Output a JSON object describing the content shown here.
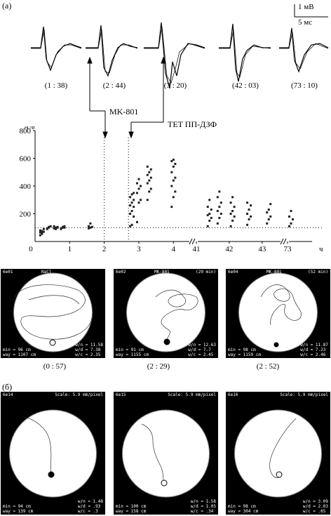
{
  "panel_a": "(a)",
  "panel_b": "(б)",
  "scale_bar": {
    "voltage": "1 мВ",
    "time": "5 мс"
  },
  "wave_labels": [
    "(1 : 38)",
    "(2 : 44)",
    "(3 : 20)",
    "(42 : 03)",
    "(73 : 10)"
  ],
  "annotations": {
    "mk801": "MK-801",
    "tet": "TET ПП-ДЗФ"
  },
  "chart_data": {
    "type": "scatter",
    "ylabel": "A%",
    "xlabel": "ч",
    "y_ticks": [
      "800",
      "600",
      "400",
      "200"
    ],
    "x_ticks": [
      "0",
      "1",
      "2",
      "3",
      "4",
      "41",
      "42",
      "43",
      "73"
    ],
    "ylim": [
      0,
      800
    ],
    "baseline": 100,
    "series": [
      {
        "x": 0.2,
        "values": [
          45,
          60,
          70,
          80,
          55,
          90,
          65,
          75
        ]
      },
      {
        "x": 0.4,
        "values": [
          90,
          100,
          110,
          95,
          105
        ]
      },
      {
        "x": 0.6,
        "values": [
          95,
          100,
          105,
          110,
          90,
          100
        ]
      },
      {
        "x": 0.8,
        "values": [
          90,
          100,
          110,
          95,
          105,
          100
        ]
      },
      {
        "x": 1.6,
        "values": [
          95,
          100,
          105,
          110,
          130
        ]
      },
      {
        "x": 2.8,
        "values": [
          110,
          120,
          180,
          200,
          220,
          250,
          260,
          280,
          300,
          320,
          340,
          350
        ]
      },
      {
        "x": 3.0,
        "values": [
          140,
          280,
          300,
          350,
          380,
          400,
          420,
          450
        ]
      },
      {
        "x": 3.3,
        "values": [
          300,
          360,
          380,
          420,
          440,
          460,
          480,
          500,
          520,
          540
        ]
      },
      {
        "x": 4.0,
        "values": [
          250,
          320,
          360,
          400,
          440,
          460,
          500,
          540,
          560,
          580,
          590
        ]
      },
      {
        "x": 41.4,
        "values": [
          110,
          150,
          170,
          190,
          200,
          230,
          250,
          300
        ]
      },
      {
        "x": 41.7,
        "values": [
          130,
          170,
          200,
          220,
          250,
          280,
          320,
          360
        ]
      },
      {
        "x": 42.1,
        "values": [
          110,
          150,
          180,
          200,
          220,
          250,
          280,
          320
        ]
      },
      {
        "x": 42.6,
        "values": [
          120,
          160,
          180,
          200,
          230,
          260,
          280
        ]
      },
      {
        "x": 43.2,
        "values": [
          130,
          160,
          180,
          210,
          230,
          270
        ]
      },
      {
        "x": 73.1,
        "values": [
          110,
          130,
          160,
          180,
          220
        ]
      }
    ]
  },
  "tracks_row1": [
    {
      "header_left": "6e01",
      "header_mid": "NaCl",
      "header_right": "",
      "stats_left": [
        "min = 96 cm",
        "way = 1107 cm"
      ],
      "stats_right": [
        "w/n = 11.58",
        "w/d = 7.38",
        "w/c = 2.35"
      ]
    },
    {
      "header_left": "6e02",
      "header_mid": "MK-801",
      "header_right": "(29 min)",
      "stats_left": [
        "min = 91 cm",
        "way = 1155 cm"
      ],
      "stats_right": [
        "w/n = 12.63",
        "w/d = 7.7",
        "w/c = 2.45"
      ]
    },
    {
      "header_left": "6e04",
      "header_mid": "MK-801",
      "header_right": "(52 min)",
      "stats_left": [
        "min = 98 cm",
        "way = 1159 cm"
      ],
      "stats_right": [
        "w/n = 11.87",
        "w/d = 7.23",
        "w/c = 2.46"
      ]
    }
  ],
  "captions_row1": [
    "(0 : 57)",
    "(2 : 29)",
    "(2 : 52)"
  ],
  "tracks_row2": [
    {
      "header_left": "6e14",
      "header_right": "Scale: 5.9 mm/pixel",
      "stats_left": [
        "min = 94 cm",
        "way = 139 cm"
      ],
      "stats_right": [
        "w/n = 1.48",
        "w/d = .93",
        "w/c = .3"
      ]
    },
    {
      "header_left": "6e15",
      "header_right": "Scale: 5.9 mm/pixel",
      "stats_left": [
        "min = 100 cm",
        "way = 158 cm"
      ],
      "stats_right": [
        "w/n = 1.58",
        "w/d = 1.05",
        "w/c = .34"
      ]
    },
    {
      "header_left": "6e16",
      "header_right": "Scale: 5.9 mm/pixel",
      "stats_left": [
        "min = 98 cm",
        "way = 304 cm"
      ],
      "stats_right": [
        "w/n = 3.09",
        "w/d = 2.03",
        "w/c = .65"
      ]
    }
  ]
}
